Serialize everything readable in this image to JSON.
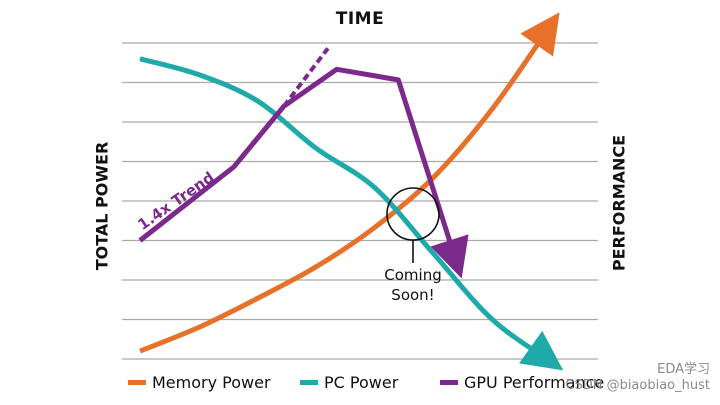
{
  "chart_data": {
    "type": "line",
    "title": "TIME",
    "ylabel_left": "TOTAL POWER",
    "ylabel_right": "PERFORMANCE",
    "grid": true,
    "legend_position": "bottom",
    "annotations": {
      "trend_label": "1.4x Trend",
      "callout_line1": "Coming",
      "callout_line2": "Soon!"
    },
    "series": [
      {
        "name": "Memory Power",
        "color": "#e8712a",
        "points": [
          [
            0,
            0.3
          ],
          [
            1,
            1.2
          ],
          [
            2,
            2.3
          ],
          [
            3,
            3.5
          ],
          [
            4,
            5.0
          ],
          [
            5,
            6.9
          ],
          [
            6,
            9.5
          ],
          [
            7,
            12.7
          ]
        ]
      },
      {
        "name": "PC Power",
        "color": "#1fa9a9",
        "points": [
          [
            0,
            11.4
          ],
          [
            1,
            10.8
          ],
          [
            2,
            9.8
          ],
          [
            3,
            8.0
          ],
          [
            4,
            6.5
          ],
          [
            5,
            4.0
          ],
          [
            6,
            1.5
          ],
          [
            7,
            -0.1
          ]
        ]
      },
      {
        "name": "GPU Performance",
        "color": "#7b2a8c",
        "points": [
          [
            0,
            4.5
          ],
          [
            1.6,
            7.3
          ],
          [
            2.45,
            9.6
          ],
          [
            3.35,
            11.0
          ],
          [
            4.4,
            10.6
          ],
          [
            5.4,
            3.6
          ]
        ]
      },
      {
        "name": "1.4x Trend",
        "color": "#7b2a8c",
        "style": "dashed",
        "points": [
          [
            2.45,
            9.6
          ],
          [
            3.2,
            11.8
          ]
        ]
      }
    ],
    "xlim": [
      0,
      7
    ],
    "ylim": [
      0,
      12
    ]
  },
  "legend": [
    {
      "label": "Memory Power",
      "color": "#e8712a"
    },
    {
      "label": "PC Power",
      "color": "#1fa9a9"
    },
    {
      "label": "GPU Performance",
      "color": "#7b2a8c"
    }
  ],
  "watermark": {
    "line1": "EDA学习",
    "line2": "CSDN @biaobiao_hust"
  }
}
